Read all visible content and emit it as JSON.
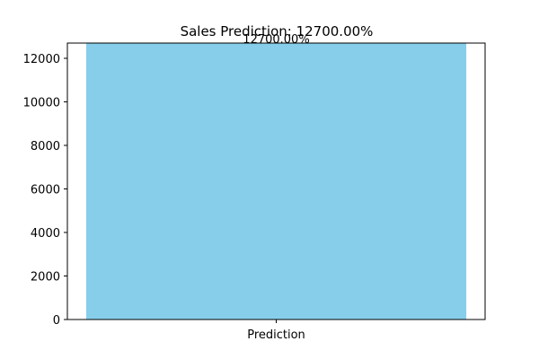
{
  "chart_data": {
    "type": "bar",
    "title": "Sales Prediction: 12700.00%",
    "categories": [
      "Prediction"
    ],
    "values": [
      12700
    ],
    "data_labels": [
      "12700.00%"
    ],
    "xlabel": "",
    "ylabel": "",
    "ylim": [
      0,
      12700
    ],
    "yticks": [
      0,
      2000,
      4000,
      6000,
      8000,
      10000,
      12000
    ],
    "bar_color": "#87CEEB",
    "grid": false
  }
}
